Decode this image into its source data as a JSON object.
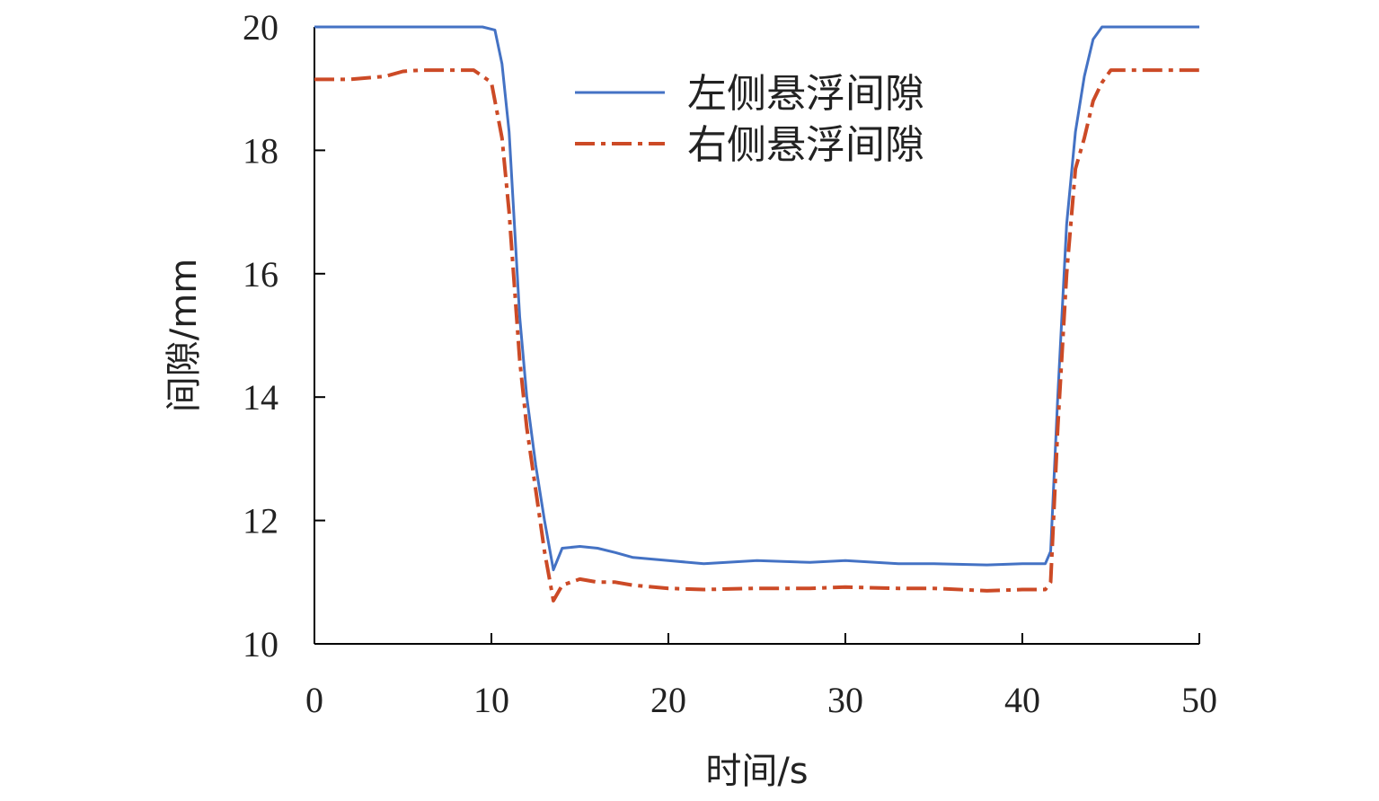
{
  "chart_data": {
    "type": "line",
    "title": "",
    "xlabel": "时间/s",
    "ylabel": "间隙/mm",
    "xlim": [
      0,
      50
    ],
    "ylim": [
      10,
      20
    ],
    "xticks": [
      "0",
      "10",
      "20",
      "30",
      "40",
      "50"
    ],
    "yticks": [
      "10",
      "12",
      "14",
      "16",
      "18",
      "20"
    ],
    "grid": false,
    "legend_position": "top-center",
    "series": [
      {
        "name": "左侧悬浮间隙",
        "color": "#4472C4",
        "style": "solid",
        "x": [
          0,
          2,
          5,
          8,
          9.5,
          10.2,
          10.6,
          11.0,
          11.3,
          11.6,
          12.0,
          12.5,
          13.0,
          13.5,
          14.0,
          15.0,
          16.0,
          17.0,
          18.0,
          20.0,
          22.0,
          25.0,
          28.0,
          30.0,
          33.0,
          35.0,
          38.0,
          40.0,
          41.3,
          41.6,
          42.0,
          42.5,
          43.0,
          43.5,
          44.0,
          44.5,
          45.0,
          47.0,
          50.0
        ],
        "values": [
          20.0,
          20.0,
          20.0,
          20.0,
          20.0,
          19.95,
          19.4,
          18.3,
          16.8,
          15.3,
          14.0,
          12.9,
          12.0,
          11.2,
          11.55,
          11.58,
          11.55,
          11.48,
          11.4,
          11.35,
          11.3,
          11.35,
          11.32,
          11.35,
          11.3,
          11.3,
          11.28,
          11.3,
          11.3,
          11.5,
          14.0,
          16.8,
          18.3,
          19.2,
          19.8,
          20.0,
          20.0,
          20.0,
          20.0
        ]
      },
      {
        "name": "右侧悬浮间隙",
        "color": "#CC4A26",
        "style": "dashdot",
        "x": [
          0,
          2,
          4,
          5,
          6,
          8,
          9.0,
          10.0,
          10.6,
          11.0,
          11.3,
          11.6,
          12.0,
          12.5,
          13.0,
          13.5,
          14.0,
          15.0,
          16.0,
          17.0,
          18.0,
          20.0,
          22.0,
          25.0,
          28.0,
          30.0,
          33.0,
          35.0,
          38.0,
          40.0,
          41.3,
          41.6,
          42.0,
          42.5,
          43.0,
          43.5,
          44.0,
          44.5,
          45.0,
          47.0,
          50.0
        ],
        "values": [
          19.15,
          19.15,
          19.2,
          19.28,
          19.3,
          19.3,
          19.3,
          19.1,
          18.2,
          17.0,
          15.8,
          14.6,
          13.5,
          12.5,
          11.5,
          10.7,
          10.95,
          11.05,
          11.0,
          11.0,
          10.95,
          10.9,
          10.88,
          10.9,
          10.9,
          10.92,
          10.9,
          10.9,
          10.86,
          10.88,
          10.88,
          11.0,
          13.5,
          16.0,
          17.7,
          18.2,
          18.8,
          19.1,
          19.3,
          19.3,
          19.3
        ]
      }
    ]
  }
}
